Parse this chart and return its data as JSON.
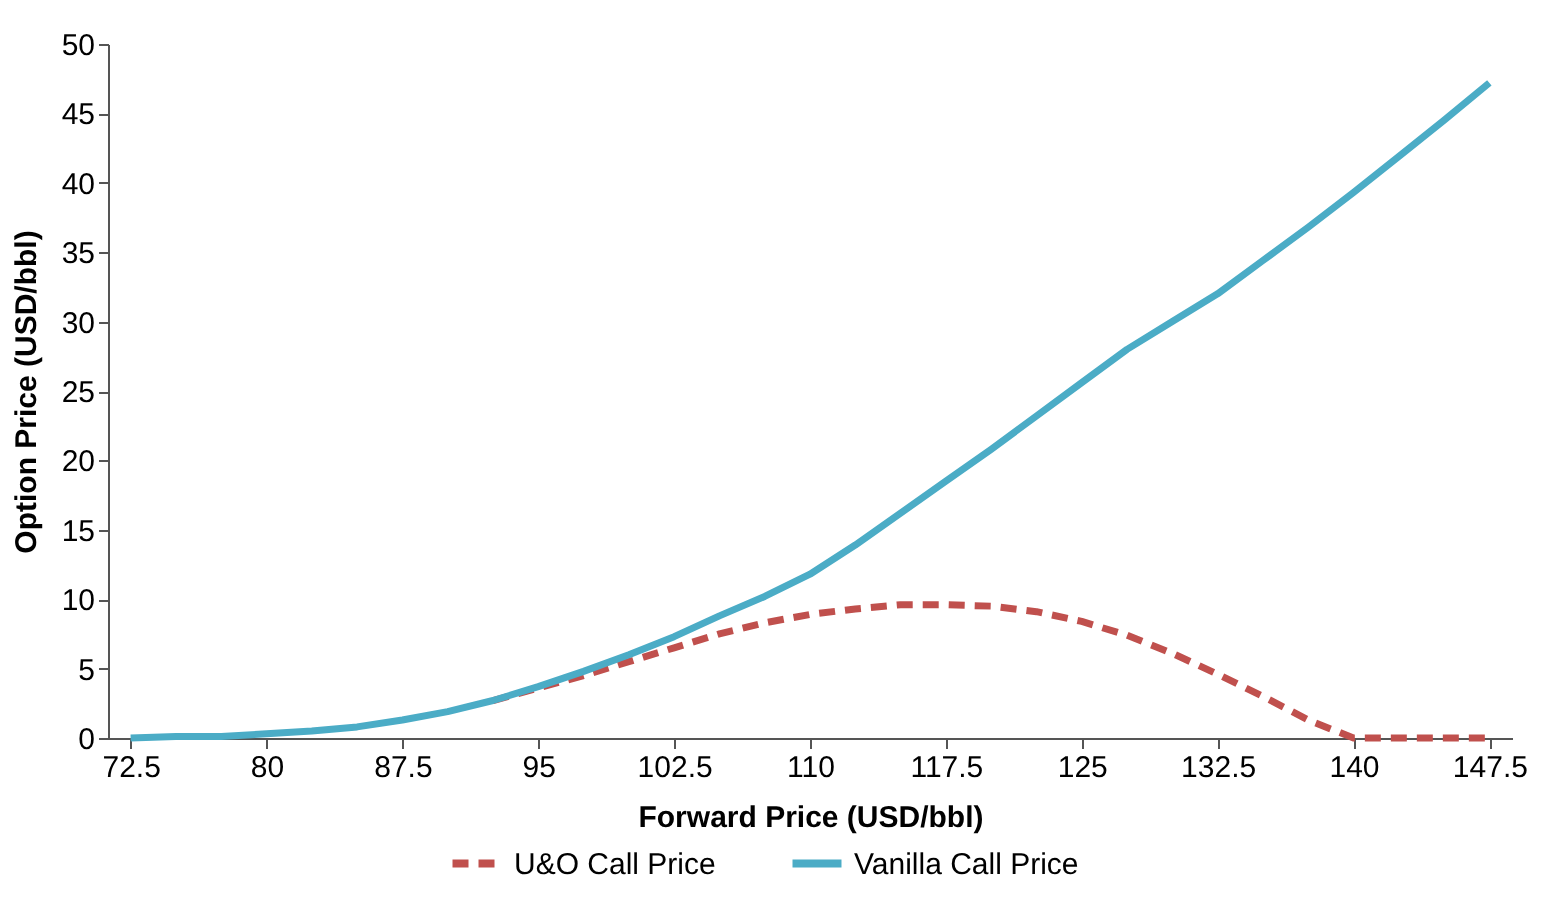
{
  "chart_data": {
    "type": "line",
    "xlabel": "Forward  Price (USD/bbl)",
    "ylabel": "Option Price (USD/bbl)",
    "x": [
      72.5,
      75,
      77.5,
      80,
      82.5,
      85,
      87.5,
      90,
      92.5,
      95,
      97.5,
      100,
      102.5,
      105,
      107.5,
      110,
      112.5,
      115,
      117.5,
      120,
      122.5,
      125,
      127.5,
      130,
      132.5,
      135,
      137.5,
      140,
      142.5,
      145,
      147.5
    ],
    "series": [
      {
        "name": "U&O Call Price",
        "color": "#c0504d",
        "line_style": "dashed",
        "values": [
          null,
          null,
          null,
          null,
          null,
          null,
          null,
          null,
          2.7,
          3.6,
          4.5,
          5.5,
          6.5,
          7.5,
          8.3,
          8.9,
          9.3,
          9.6,
          9.6,
          9.5,
          9.1,
          8.4,
          7.4,
          6.1,
          4.6,
          3,
          1.3,
          0,
          0,
          0,
          0
        ]
      },
      {
        "name": "Vanilla Call Price",
        "color": "#4bacc6",
        "line_style": "solid",
        "values": [
          0,
          0.1,
          0.1,
          0.3,
          0.5,
          0.8,
          1.3,
          1.9,
          2.7,
          3.7,
          4.8,
          6,
          7.3,
          8.8,
          10.2,
          11.8,
          13.9,
          16.2,
          18.5,
          20.8,
          23.2,
          25.6,
          28,
          30,
          32,
          34.4,
          36.8,
          39.3,
          41.9,
          44.5,
          47.2
        ]
      }
    ],
    "xlim": [
      71.25,
      148.75
    ],
    "xticks": [
      {
        "value": 72.5,
        "label": "72.5"
      },
      80,
      {
        "value": 87.5,
        "label": "87.5"
      },
      95,
      {
        "value": 102.5,
        "label": "102.5"
      },
      110,
      {
        "value": 117.5,
        "label": "117.5"
      },
      125,
      {
        "value": 132.5,
        "label": "132.5"
      },
      140,
      {
        "value": 147.5,
        "label": "147.5"
      }
    ],
    "ylim": [
      0,
      50
    ],
    "yticks": [
      0,
      5,
      10,
      15,
      20,
      25,
      30,
      35,
      40,
      45,
      50
    ],
    "grid": false,
    "legend": "bottom",
    "marker": "none"
  }
}
